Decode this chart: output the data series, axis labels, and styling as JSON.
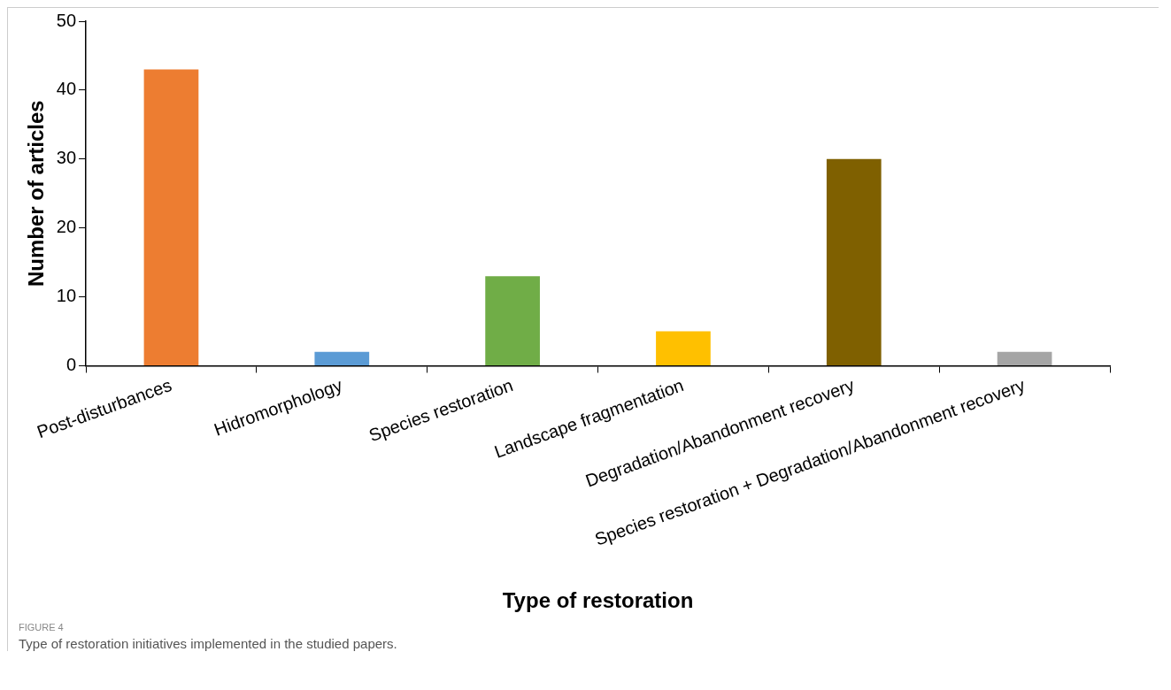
{
  "chart_data": {
    "type": "bar",
    "xlabel": "Type of restoration",
    "ylabel": "Number of articles",
    "categories": [
      "Post-disturbances",
      "Hidromorphology",
      "Species restoration",
      "Landscape fragmentation",
      "Degradation/Abandonment recovery",
      "Species restoration + Degradation/Abandonment recovery"
    ],
    "values": [
      43,
      2,
      13,
      5,
      30,
      2
    ],
    "colors": [
      "#ed7d31",
      "#5b9bd5",
      "#70ad47",
      "#ffc000",
      "#7f6000",
      "#a5a5a5"
    ],
    "ylim": [
      0,
      50
    ],
    "yticks": [
      0,
      10,
      20,
      30,
      40,
      50
    ],
    "grid": false,
    "legend": false,
    "annotations": [
      "FIGURE 4",
      "Type of restoration initiatives implemented in the studied papers."
    ]
  }
}
